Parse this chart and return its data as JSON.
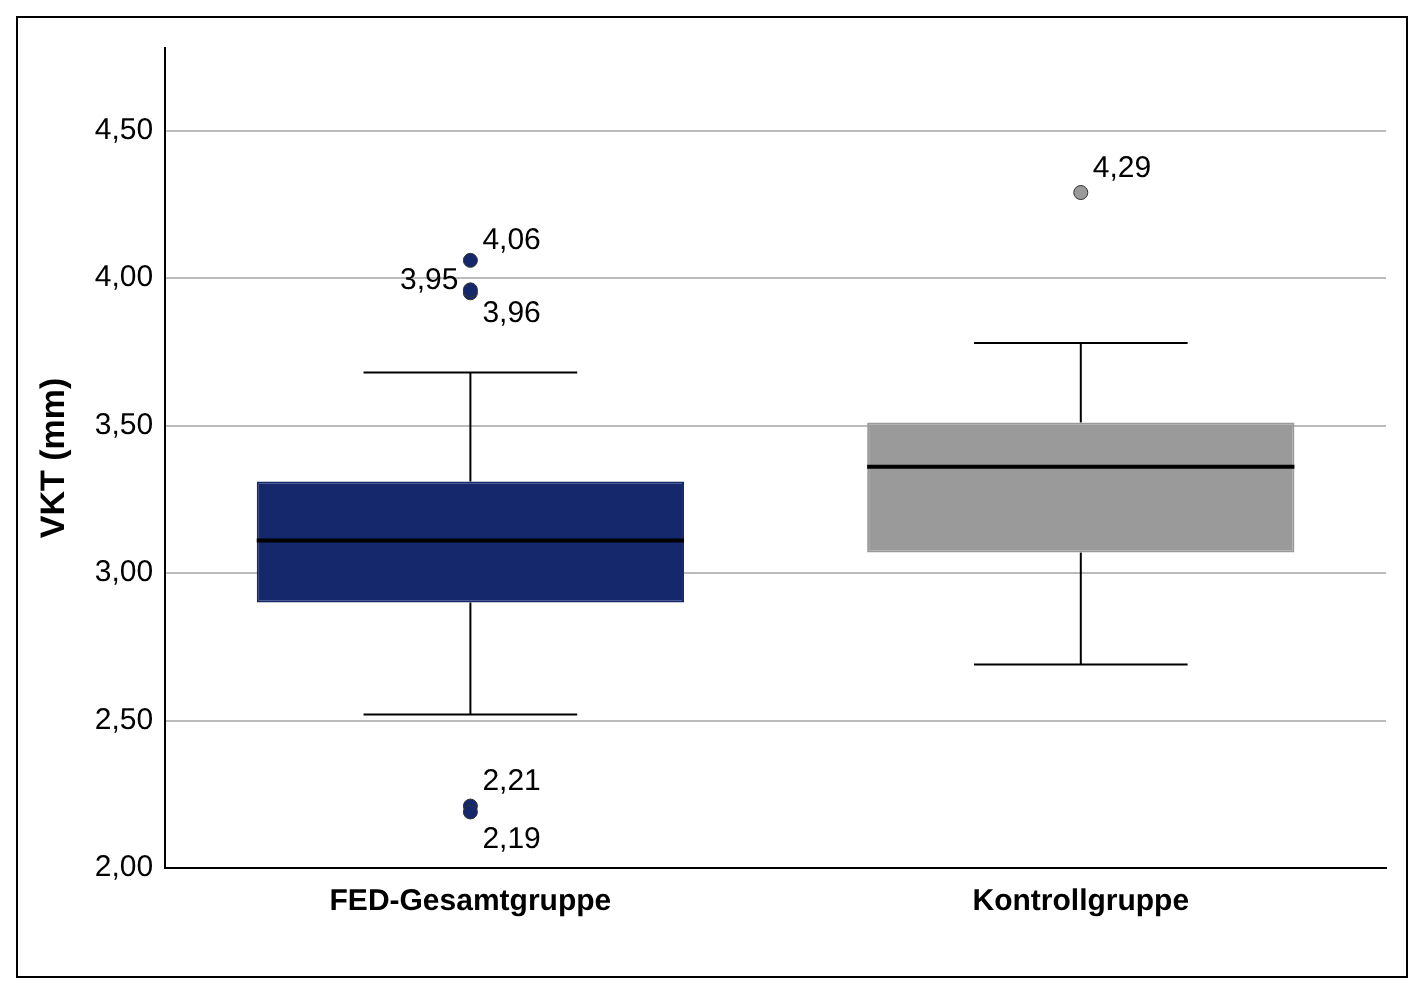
{
  "chart_data": {
    "type": "box",
    "ylabel": "VKT (mm)",
    "categories": [
      "FED-Gesamtgruppe",
      "Kontrollgruppe"
    ],
    "colors": [
      "#15286b",
      "#9a9a9a"
    ],
    "boxes": [
      {
        "low": 2.52,
        "q1": 2.9,
        "median": 3.11,
        "q3": 3.31,
        "high": 3.68,
        "outliers": [
          4.06,
          3.95,
          3.96,
          2.21,
          2.19
        ]
      },
      {
        "low": 2.69,
        "q1": 3.07,
        "median": 3.36,
        "q3": 3.51,
        "high": 3.78,
        "outliers": [
          4.29
        ]
      }
    ],
    "ylim": [
      2,
      4.78
    ],
    "yticks": [
      {
        "value": 2,
        "label": "2,00"
      },
      {
        "value": 2.5,
        "label": "2,50"
      },
      {
        "value": 3,
        "label": "3,00"
      },
      {
        "value": 3.5,
        "label": "3,50"
      },
      {
        "value": 4,
        "label": "4,00"
      },
      {
        "value": 4.5,
        "label": "4,50"
      }
    ],
    "grid": "y",
    "legend": false,
    "annotations": [
      "4,06",
      "3,95",
      "3,96",
      "2,21",
      "2,19",
      "4,29"
    ]
  }
}
